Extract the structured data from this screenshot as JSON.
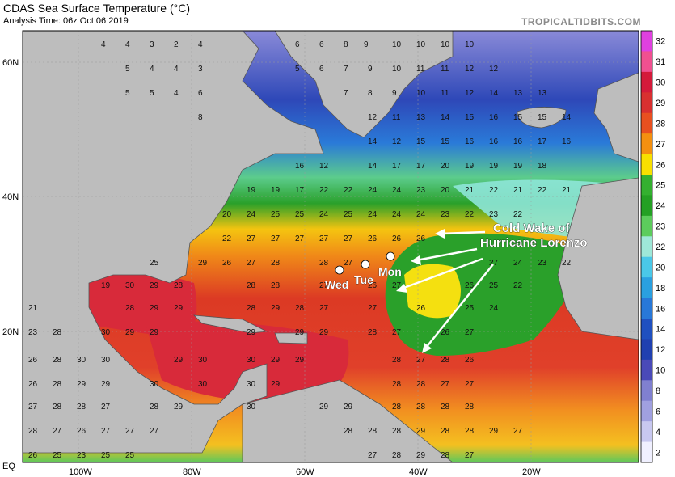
{
  "header": {
    "title": "CDAS Sea Surface Temperature (°C)",
    "subtitle": "Analysis Time: 06z Oct 06 2019",
    "brand": "TROPICALTIDBITS.COM"
  },
  "axes": {
    "lat_labels": [
      "60N",
      "40N",
      "20N",
      "EQ"
    ],
    "lon_labels": [
      "100W",
      "80W",
      "60W",
      "40W",
      "20W"
    ]
  },
  "colorbar": {
    "labels": [
      "32",
      "31",
      "30",
      "29",
      "28",
      "27",
      "26",
      "25",
      "24",
      "23",
      "22",
      "20",
      "18",
      "16",
      "14",
      "12",
      "10",
      "8",
      "6",
      "4",
      "2"
    ],
    "colors": [
      "#e040e0",
      "#f05090",
      "#d41a3a",
      "#d83030",
      "#e85020",
      "#f49010",
      "#f8e000",
      "#34b030",
      "#24a024",
      "#5ccc5c",
      "#9ee8d8",
      "#4ac8e8",
      "#2aa0e0",
      "#2878d8",
      "#2050c0",
      "#2040b0",
      "#4a4ab8",
      "#8080d0",
      "#a0a0e0",
      "#c8c8f0",
      "#f0f0ff"
    ]
  },
  "annotation": {
    "line1": "Cold Wake of",
    "line2": "Hurricane Lorenzo",
    "days": [
      "Wed",
      "Tue",
      "Mon"
    ]
  },
  "sst_labels": [
    {
      "v": "4"
    },
    {
      "v": "4"
    },
    {
      "v": "3"
    },
    {
      "v": "2"
    },
    {
      "v": "4"
    },
    {
      "v": "6"
    },
    {
      "v": "6"
    },
    {
      "v": "8"
    },
    {
      "v": "9"
    },
    {
      "v": "10"
    },
    {
      "v": "10"
    },
    {
      "v": "10"
    },
    {
      "v": "10"
    },
    {
      "v": "5"
    },
    {
      "v": "4"
    },
    {
      "v": "4"
    },
    {
      "v": "3"
    },
    {
      "v": "5"
    },
    {
      "v": "6"
    },
    {
      "v": "7"
    },
    {
      "v": "9"
    },
    {
      "v": "10"
    },
    {
      "v": "11"
    },
    {
      "v": "11"
    },
    {
      "v": "12"
    },
    {
      "v": "12"
    },
    {
      "v": "5"
    },
    {
      "v": "5"
    },
    {
      "v": "4"
    },
    {
      "v": "6"
    },
    {
      "v": "7"
    },
    {
      "v": "8"
    },
    {
      "v": "9"
    },
    {
      "v": "10"
    },
    {
      "v": "11"
    },
    {
      "v": "12"
    },
    {
      "v": "14"
    },
    {
      "v": "13"
    },
    {
      "v": "13"
    },
    {
      "v": "8"
    },
    {
      "v": "12"
    },
    {
      "v": "11"
    },
    {
      "v": "13"
    },
    {
      "v": "14"
    },
    {
      "v": "15"
    },
    {
      "v": "16"
    },
    {
      "v": "15"
    },
    {
      "v": "15"
    },
    {
      "v": "14"
    },
    {
      "v": "14"
    },
    {
      "v": "12"
    },
    {
      "v": "15"
    },
    {
      "v": "15"
    },
    {
      "v": "16"
    },
    {
      "v": "16"
    },
    {
      "v": "16"
    },
    {
      "v": "17"
    },
    {
      "v": "16"
    },
    {
      "v": "16"
    },
    {
      "v": "12"
    },
    {
      "v": "14"
    },
    {
      "v": "17"
    },
    {
      "v": "17"
    },
    {
      "v": "20"
    },
    {
      "v": "19"
    },
    {
      "v": "19"
    },
    {
      "v": "19"
    },
    {
      "v": "18"
    },
    {
      "v": "19"
    },
    {
      "v": "19"
    },
    {
      "v": "17"
    },
    {
      "v": "22"
    },
    {
      "v": "22"
    },
    {
      "v": "24"
    },
    {
      "v": "24"
    },
    {
      "v": "23"
    },
    {
      "v": "20"
    },
    {
      "v": "21"
    },
    {
      "v": "22"
    },
    {
      "v": "21"
    },
    {
      "v": "22"
    },
    {
      "v": "21"
    },
    {
      "v": "20"
    },
    {
      "v": "24"
    },
    {
      "v": "25"
    },
    {
      "v": "25"
    },
    {
      "v": "24"
    },
    {
      "v": "25"
    },
    {
      "v": "24"
    },
    {
      "v": "24"
    },
    {
      "v": "24"
    },
    {
      "v": "23"
    },
    {
      "v": "22"
    },
    {
      "v": "23"
    },
    {
      "v": "22"
    },
    {
      "v": "22"
    },
    {
      "v": "27"
    },
    {
      "v": "27"
    },
    {
      "v": "27"
    },
    {
      "v": "27"
    },
    {
      "v": "27"
    },
    {
      "v": "26"
    },
    {
      "v": "26"
    },
    {
      "v": "26"
    },
    {
      "v": "25"
    },
    {
      "v": "29"
    },
    {
      "v": "26"
    },
    {
      "v": "27"
    },
    {
      "v": "28"
    },
    {
      "v": "28"
    },
    {
      "v": "27"
    },
    {
      "v": "27"
    },
    {
      "v": "24"
    },
    {
      "v": "23"
    },
    {
      "v": "22"
    },
    {
      "v": "19"
    },
    {
      "v": "30"
    },
    {
      "v": "29"
    },
    {
      "v": "28"
    },
    {
      "v": "28"
    },
    {
      "v": "28"
    },
    {
      "v": "27"
    },
    {
      "v": "26"
    },
    {
      "v": "27"
    },
    {
      "v": "26"
    },
    {
      "v": "25"
    },
    {
      "v": "22"
    },
    {
      "v": "21"
    },
    {
      "v": "28"
    },
    {
      "v": "29"
    },
    {
      "v": "29"
    },
    {
      "v": "28"
    },
    {
      "v": "29"
    },
    {
      "v": "28"
    },
    {
      "v": "27"
    },
    {
      "v": "27"
    },
    {
      "v": "26"
    },
    {
      "v": "25"
    },
    {
      "v": "24"
    },
    {
      "v": "23"
    },
    {
      "v": "28"
    },
    {
      "v": "30"
    },
    {
      "v": "29"
    },
    {
      "v": "29"
    },
    {
      "v": "29"
    },
    {
      "v": "29"
    },
    {
      "v": "29"
    },
    {
      "v": "28"
    },
    {
      "v": "27"
    },
    {
      "v": "26"
    },
    {
      "v": "27"
    },
    {
      "v": "26"
    },
    {
      "v": "28"
    },
    {
      "v": "30"
    },
    {
      "v": "30"
    },
    {
      "v": "29"
    },
    {
      "v": "30"
    },
    {
      "v": "30"
    },
    {
      "v": "29"
    },
    {
      "v": "29"
    },
    {
      "v": "28"
    },
    {
      "v": "27"
    },
    {
      "v": "28"
    },
    {
      "v": "26"
    },
    {
      "v": "26"
    },
    {
      "v": "28"
    },
    {
      "v": "29"
    },
    {
      "v": "29"
    },
    {
      "v": "30"
    },
    {
      "v": "30"
    },
    {
      "v": "30"
    },
    {
      "v": "29"
    },
    {
      "v": "28"
    },
    {
      "v": "28"
    },
    {
      "v": "27"
    },
    {
      "v": "27"
    },
    {
      "v": "27"
    },
    {
      "v": "28"
    },
    {
      "v": "28"
    },
    {
      "v": "27"
    },
    {
      "v": "28"
    },
    {
      "v": "29"
    },
    {
      "v": "30"
    },
    {
      "v": "29"
    },
    {
      "v": "29"
    },
    {
      "v": "28"
    },
    {
      "v": "28"
    },
    {
      "v": "28"
    },
    {
      "v": "28"
    },
    {
      "v": "28"
    },
    {
      "v": "27"
    },
    {
      "v": "26"
    },
    {
      "v": "27"
    },
    {
      "v": "27"
    },
    {
      "v": "27"
    },
    {
      "v": "28"
    },
    {
      "v": "28"
    },
    {
      "v": "28"
    },
    {
      "v": "29"
    },
    {
      "v": "28"
    },
    {
      "v": "28"
    },
    {
      "v": "29"
    },
    {
      "v": "27"
    },
    {
      "v": "26"
    },
    {
      "v": "25"
    },
    {
      "v": "23"
    },
    {
      "v": "25"
    },
    {
      "v": "25"
    },
    {
      "v": "27"
    },
    {
      "v": "28"
    },
    {
      "v": "29"
    },
    {
      "v": "28"
    },
    {
      "v": "27"
    },
    {
      "v": "27"
    }
  ]
}
